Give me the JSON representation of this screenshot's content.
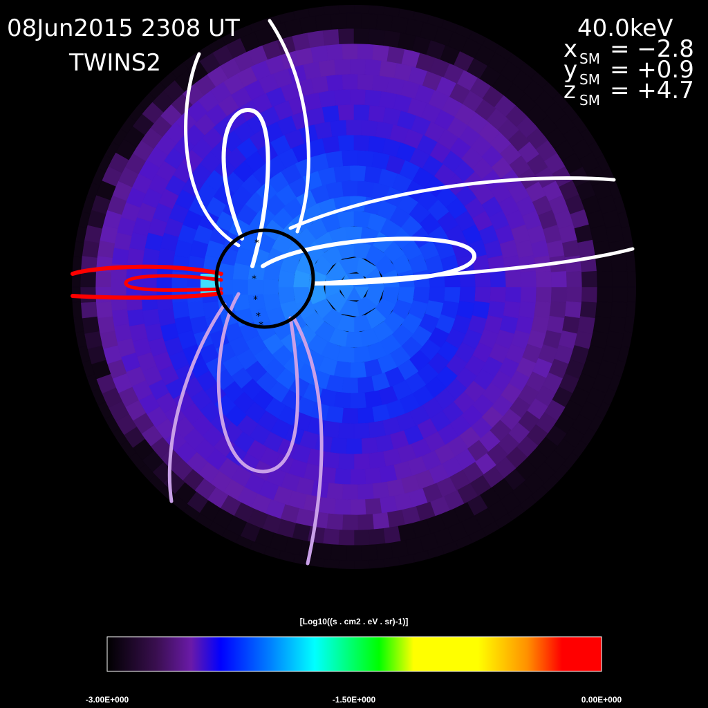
{
  "header": {
    "datetime": "08Jun2015 2308 UT",
    "spacecraft": "TWINS2"
  },
  "info": {
    "energy": "40.0keV",
    "coords": [
      {
        "axis": "x",
        "sub": "SM",
        "value": "= −2.8"
      },
      {
        "axis": "y",
        "sub": "SM",
        "value": "= +0.9"
      },
      {
        "axis": "z",
        "sub": "SM",
        "value": "= +4.7"
      }
    ]
  },
  "colorbar": {
    "title": "[Log10((s . cm2 . eV . sr)-1)]",
    "ticks": [
      "-3.00E+000",
      "-1.50E+000",
      "0.00E+000"
    ]
  }
}
